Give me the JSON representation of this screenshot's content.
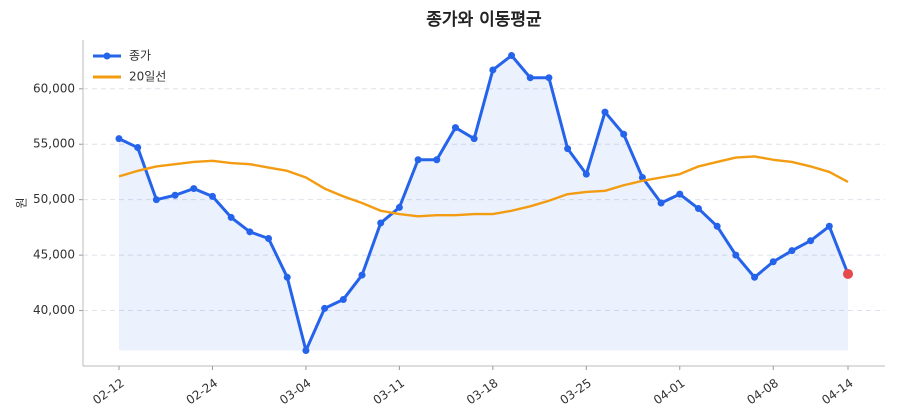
{
  "chart_data": {
    "type": "line",
    "title": "종가와 이동평균",
    "y_label": "원",
    "categories": [
      "02-12",
      null,
      null,
      null,
      null,
      "02-24",
      null,
      null,
      null,
      null,
      "03-04",
      null,
      null,
      null,
      null,
      "03-11",
      null,
      null,
      null,
      null,
      "03-18",
      null,
      null,
      null,
      null,
      "03-25",
      null,
      null,
      null,
      null,
      "04-01",
      null,
      null,
      null,
      null,
      "04-08",
      null,
      null,
      null,
      "04-14"
    ],
    "series": [
      {
        "name": "종가",
        "color": "#2563eb",
        "markers": true,
        "fill": "#2563eb",
        "values": [
          55500,
          54700,
          50000,
          50400,
          51000,
          50300,
          48400,
          47100,
          46500,
          43000,
          36400,
          40200,
          41000,
          43200,
          47900,
          49300,
          53600,
          53600,
          56500,
          55500,
          61700,
          63000,
          61000,
          61000,
          54600,
          52300,
          57900,
          55900,
          52000,
          49700,
          50500,
          49200,
          47600,
          45000,
          43000,
          44400,
          45400,
          46300,
          47600,
          43300
        ]
      },
      {
        "name": "20일선",
        "color": "#f39c12",
        "markers": false,
        "values": [
          52100,
          52600,
          53000,
          53200,
          53400,
          53500,
          53300,
          53200,
          52900,
          52600,
          52000,
          51000,
          50300,
          49700,
          49000,
          48700,
          48500,
          48600,
          48600,
          48700,
          48700,
          49000,
          49400,
          49900,
          50500,
          50700,
          50800,
          51300,
          51700,
          52000,
          52300,
          53000,
          53400,
          53800,
          53900,
          53600,
          53400,
          53000,
          52500,
          51600
        ]
      }
    ],
    "last_point_color": "#e5484d",
    "ylim": [
      35000,
      64400
    ],
    "yticks": [
      {
        "value": 40000,
        "label": "40,000"
      },
      {
        "value": 45000,
        "label": "45,000"
      },
      {
        "value": 50000,
        "label": "50,000"
      },
      {
        "value": 55000,
        "label": "55,000"
      },
      {
        "value": 60000,
        "label": "60,000"
      }
    ],
    "grid": true,
    "legend": "upper-left"
  }
}
